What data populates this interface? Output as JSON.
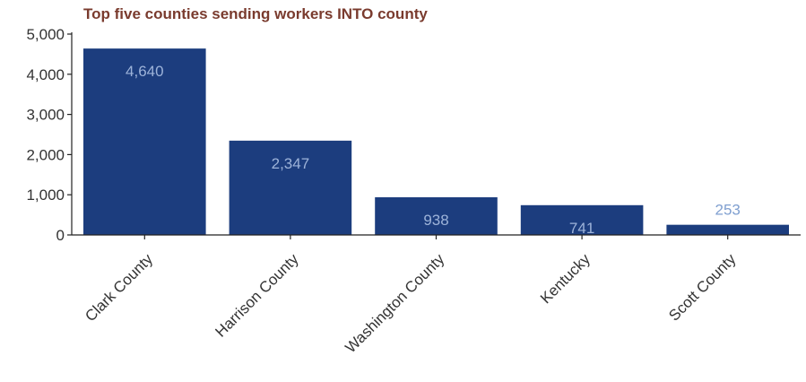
{
  "chart_data": {
    "type": "bar",
    "title": "Top five counties sending workers INTO county",
    "categories": [
      "Clark County",
      "Harrison County",
      "Washington County",
      "Kentucky",
      "Scott County"
    ],
    "values": [
      4640,
      2347,
      938,
      741,
      253
    ],
    "data_labels": [
      "4,640",
      "2,347",
      "938",
      "741",
      "253"
    ],
    "y_ticks": [
      0,
      1000,
      2000,
      3000,
      4000,
      5000
    ],
    "y_tick_labels": [
      "0",
      "1,000",
      "2,000",
      "3,000",
      "4,000",
      "5,000"
    ],
    "ylim": [
      0,
      5000
    ],
    "xlabel": "",
    "ylabel": "",
    "grid": false,
    "legend": "none",
    "colors": {
      "bar": "#1c3d7e",
      "label_on_bar": "#9db3d9",
      "label_above_bar": "#7f9fd0",
      "title": "#7a3b2e",
      "axis": "#222222",
      "tick_text": "#333333"
    }
  }
}
